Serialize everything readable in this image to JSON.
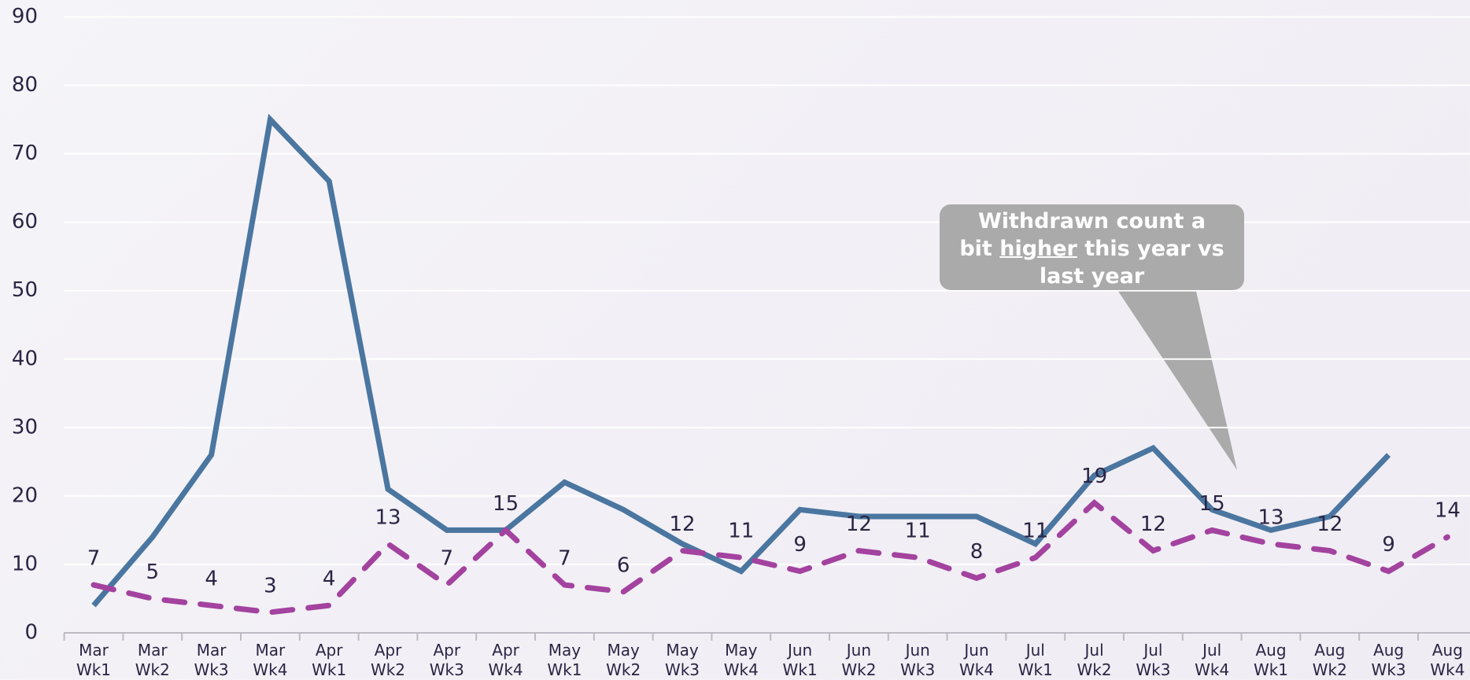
{
  "chart_data": {
    "type": "line",
    "categories": [
      "Mar Wk1",
      "Mar Wk2",
      "Mar Wk3",
      "Mar Wk4",
      "Apr Wk1",
      "Apr Wk2",
      "Apr Wk3",
      "Apr Wk4",
      "May Wk1",
      "May Wk2",
      "May Wk3",
      "May Wk4",
      "Jun Wk1",
      "Jun Wk2",
      "Jun Wk3",
      "Jun Wk4",
      "Jul Wk1",
      "Jul Wk2",
      "Jul Wk3",
      "Jul Wk4",
      "Aug Wk1",
      "Aug Wk2",
      "Aug Wk3",
      "Aug Wk4"
    ],
    "series": [
      {
        "color": "#4a76a0",
        "style": "solid",
        "data_labels": false,
        "values": [
          4,
          14,
          26,
          75,
          66,
          21,
          15,
          15,
          22,
          18,
          13,
          9,
          18,
          17,
          17,
          17,
          13,
          23,
          27,
          18,
          15,
          17,
          26,
          null
        ]
      },
      {
        "color": "#a3429f",
        "style": "dashed",
        "data_labels": true,
        "values": [
          7,
          5,
          4,
          3,
          4,
          13,
          7,
          15,
          7,
          6,
          12,
          11,
          9,
          12,
          11,
          8,
          11,
          19,
          12,
          15,
          13,
          12,
          9,
          14
        ]
      }
    ],
    "ylim": [
      0,
      90
    ],
    "yticks": [
      0,
      10,
      20,
      30,
      40,
      50,
      60,
      70,
      80,
      90
    ],
    "grid": true,
    "annotation": [
      "Withdrawn count a bit ",
      "higher",
      " this year vs last year"
    ]
  }
}
